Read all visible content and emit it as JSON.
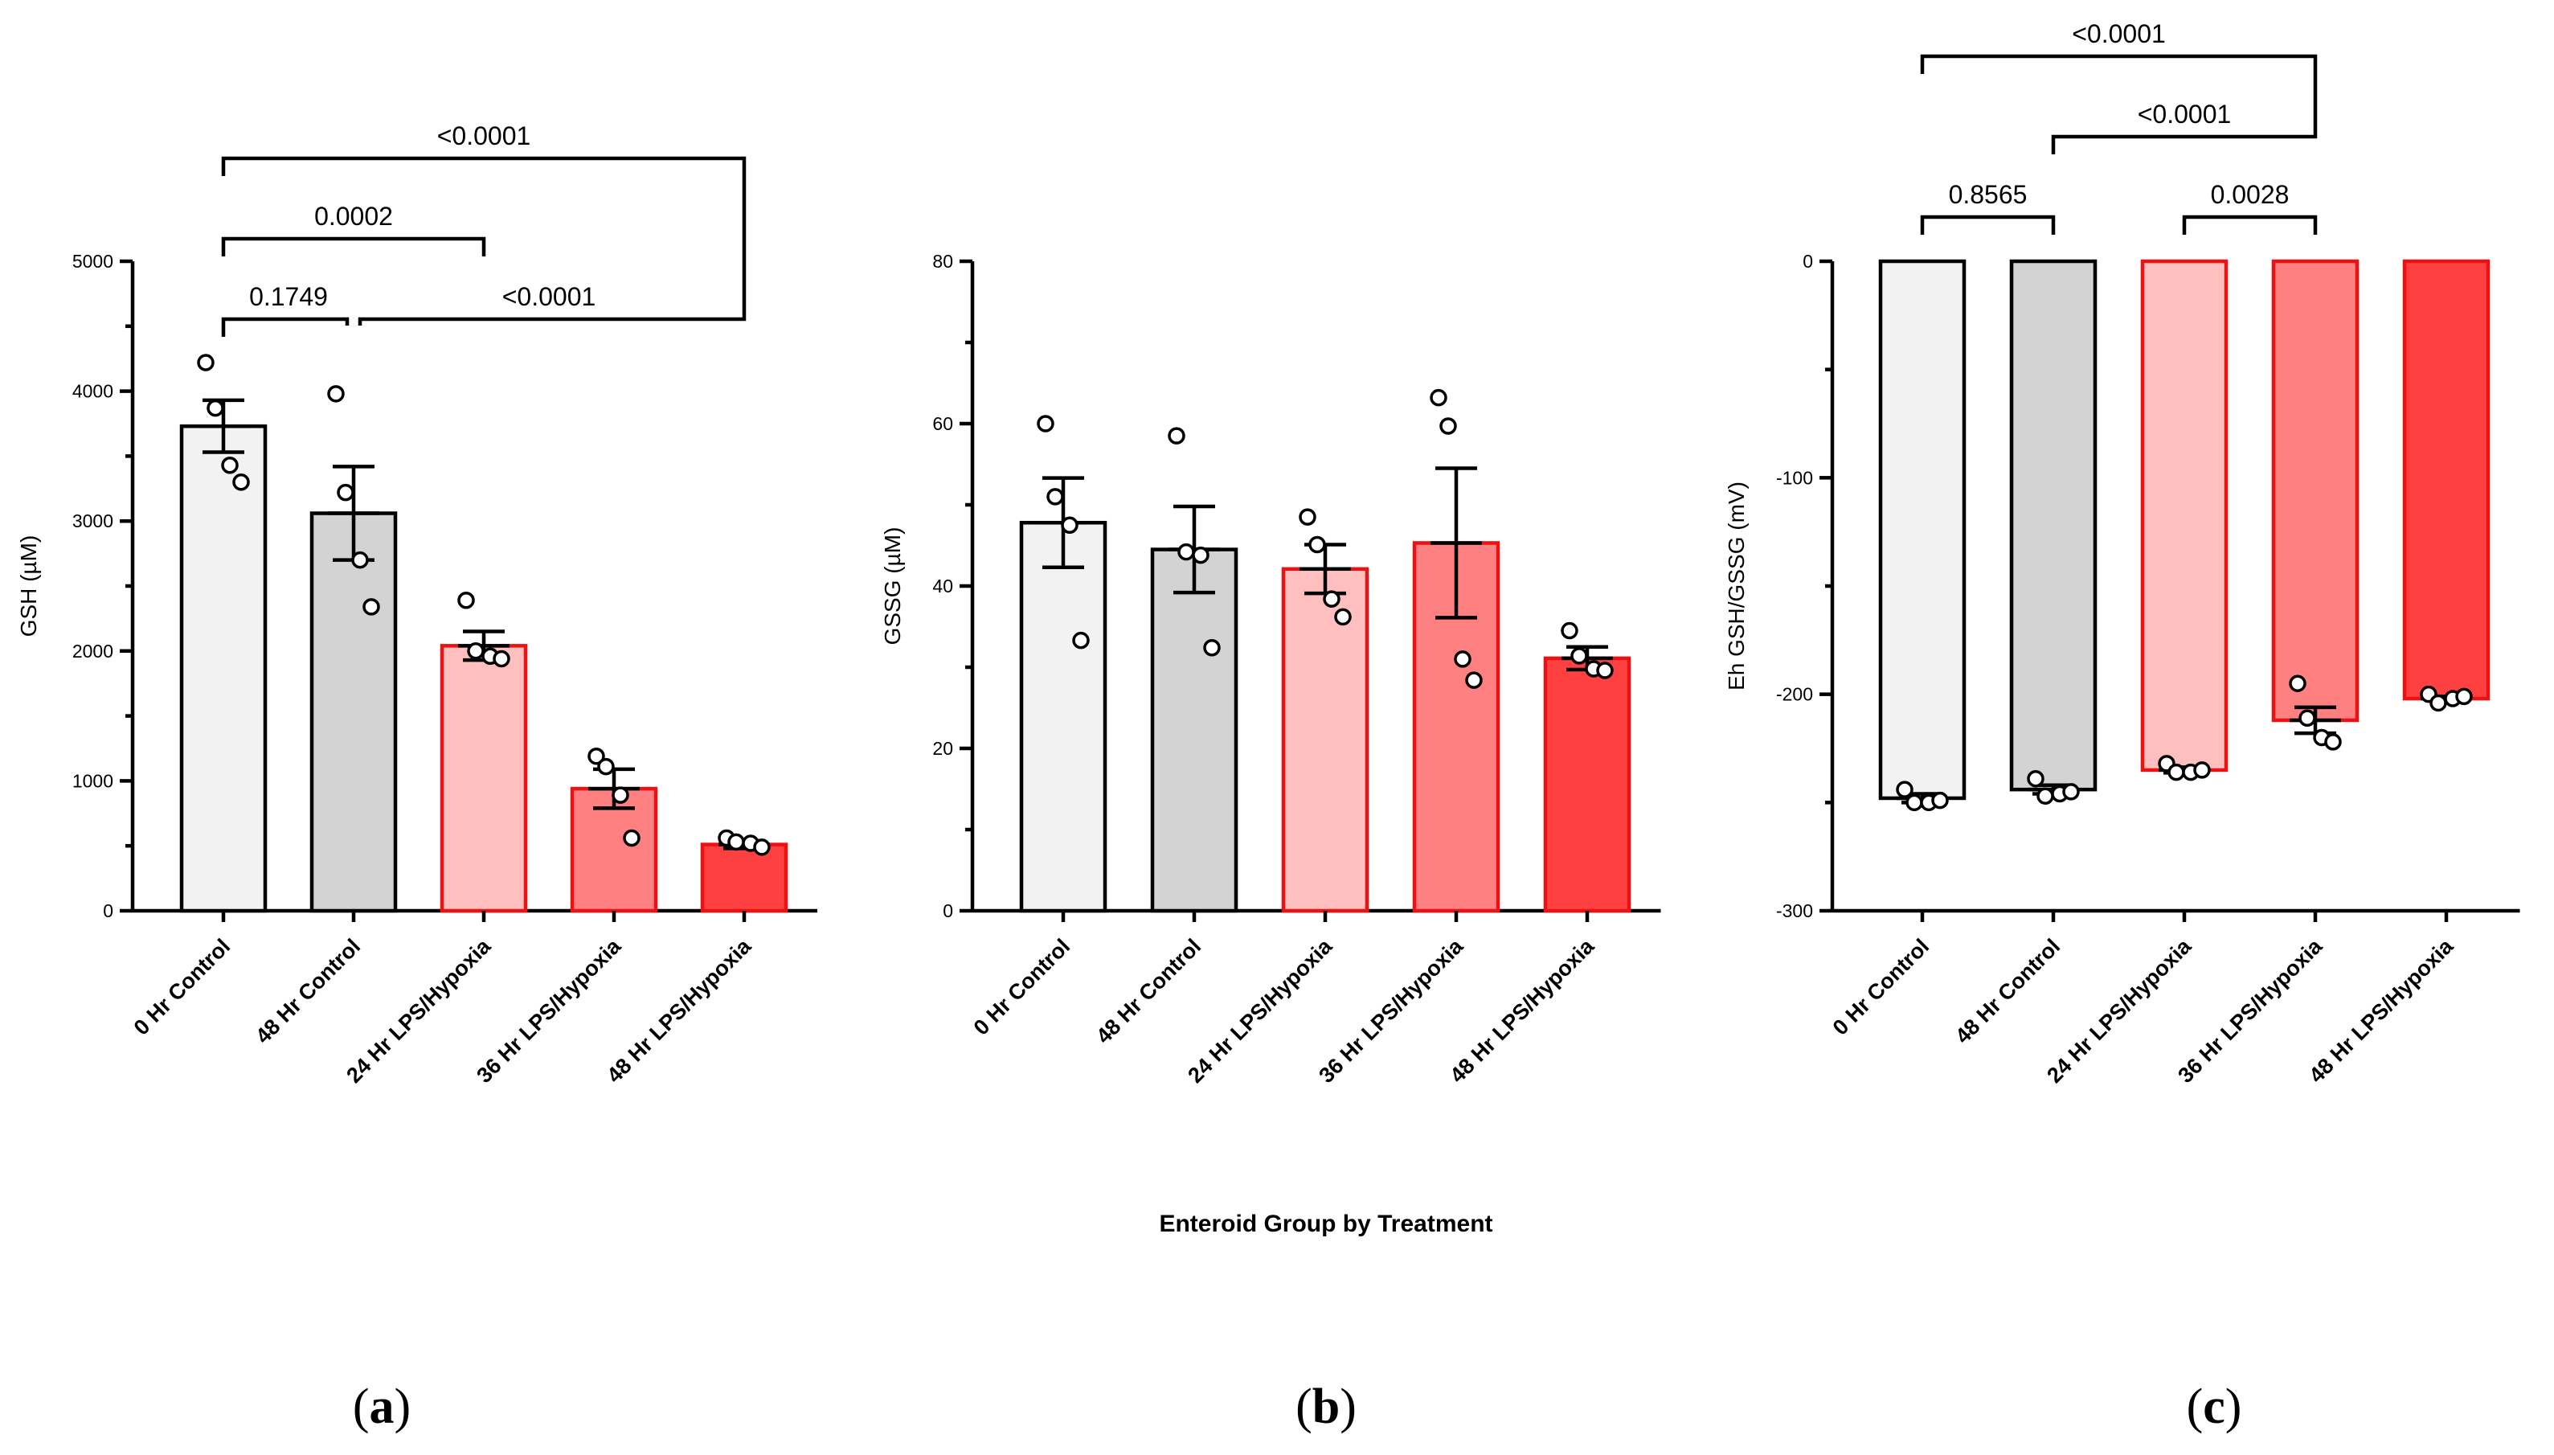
{
  "shared_xlabel": "Enteroid Group by Treatment",
  "palette": {
    "fills": [
      "#f2f2f2",
      "#d3d3d3",
      "#ffbfbf",
      "#ff8080",
      "#ff4040"
    ],
    "strokes": [
      "#000000",
      "#000000",
      "#ee1111",
      "#ee1111",
      "#ee1111"
    ]
  },
  "chart_data": [
    {
      "panel": "a",
      "type": "bar",
      "categories": [
        "0 Hr Control",
        "48 Hr Control",
        "24 Hr LPS/Hypoxia",
        "36 Hr LPS/Hypoxia",
        "48 Hr LPS/Hypoxia"
      ],
      "values": [
        3730,
        3060,
        2040,
        940,
        510
      ],
      "errors": [
        200,
        360,
        110,
        150,
        30
      ],
      "points": [
        [
          4220,
          3870,
          3430,
          3300
        ],
        [
          3980,
          3220,
          2700,
          2340
        ],
        [
          2390,
          2000,
          1960,
          1940
        ],
        [
          1190,
          1110,
          890,
          560
        ],
        [
          560,
          530,
          520,
          490
        ]
      ],
      "ylabel": "GSH  (µM)",
      "ylim": [
        0,
        5000
      ],
      "yticks": [
        0,
        1000,
        2000,
        3000,
        4000,
        5000
      ],
      "comparisons": [
        {
          "from": 0,
          "to": 4,
          "label": "<0.0001"
        },
        {
          "from": 0,
          "to": 2,
          "label": "0.0002"
        },
        {
          "from": 0,
          "to": 1,
          "label": "0.1749"
        },
        {
          "from": 1,
          "to": 4,
          "label": "<0.0001"
        }
      ],
      "panel_label": "a"
    },
    {
      "panel": "b",
      "type": "bar",
      "categories": [
        "0 Hr Control",
        "48 Hr Control",
        "24 Hr LPS/Hypoxia",
        "36 Hr LPS/Hypoxia",
        "48 Hr LPS/Hypoxia"
      ],
      "values": [
        47.8,
        44.5,
        42.1,
        45.3,
        31.1
      ],
      "errors": [
        5.5,
        5.3,
        3.0,
        9.2,
        1.4
      ],
      "points": [
        [
          60,
          51,
          47.5,
          33.3
        ],
        [
          58.5,
          44.2,
          43.8,
          32.4
        ],
        [
          48.5,
          45.1,
          38.4,
          36.2
        ],
        [
          63.2,
          59.7,
          31,
          28.4
        ],
        [
          34.5,
          31.4,
          29.8,
          29.6
        ]
      ],
      "ylabel": "GSSG  (µM)",
      "ylim": [
        0,
        80
      ],
      "yticks": [
        0,
        20,
        40,
        60,
        80
      ],
      "comparisons": [],
      "panel_label": "b"
    },
    {
      "panel": "c",
      "type": "bar",
      "categories": [
        "0 Hr Control",
        "48 Hr Control",
        "24 Hr LPS/Hypoxia",
        "36 Hr LPS/Hypoxia",
        "48 Hr LPS/Hypoxia"
      ],
      "values": [
        -248,
        -244,
        -235,
        -212,
        -202
      ],
      "errors": [
        2,
        2,
        1.3,
        6,
        1
      ],
      "points": [
        [
          -244,
          -250,
          -250,
          -249
        ],
        [
          -239,
          -247,
          -246,
          -245
        ],
        [
          -232,
          -236,
          -236,
          -235
        ],
        [
          -195,
          -211,
          -220,
          -222
        ],
        [
          -200,
          -204,
          -202,
          -201
        ]
      ],
      "ylabel": "Eh GSH/GSSG (mV)",
      "ylim": [
        -300,
        0
      ],
      "yticks": [
        0,
        -100,
        -200,
        -300
      ],
      "comparisons": [
        {
          "from": 0,
          "to": 3,
          "label": "<0.0001"
        },
        {
          "from": 1,
          "to": 3,
          "label": "<0.0001"
        },
        {
          "from": 0,
          "to": 1,
          "label": "0.8565"
        },
        {
          "from": 2,
          "to": 3,
          "label": "0.0028"
        }
      ],
      "panel_label": "c"
    }
  ]
}
